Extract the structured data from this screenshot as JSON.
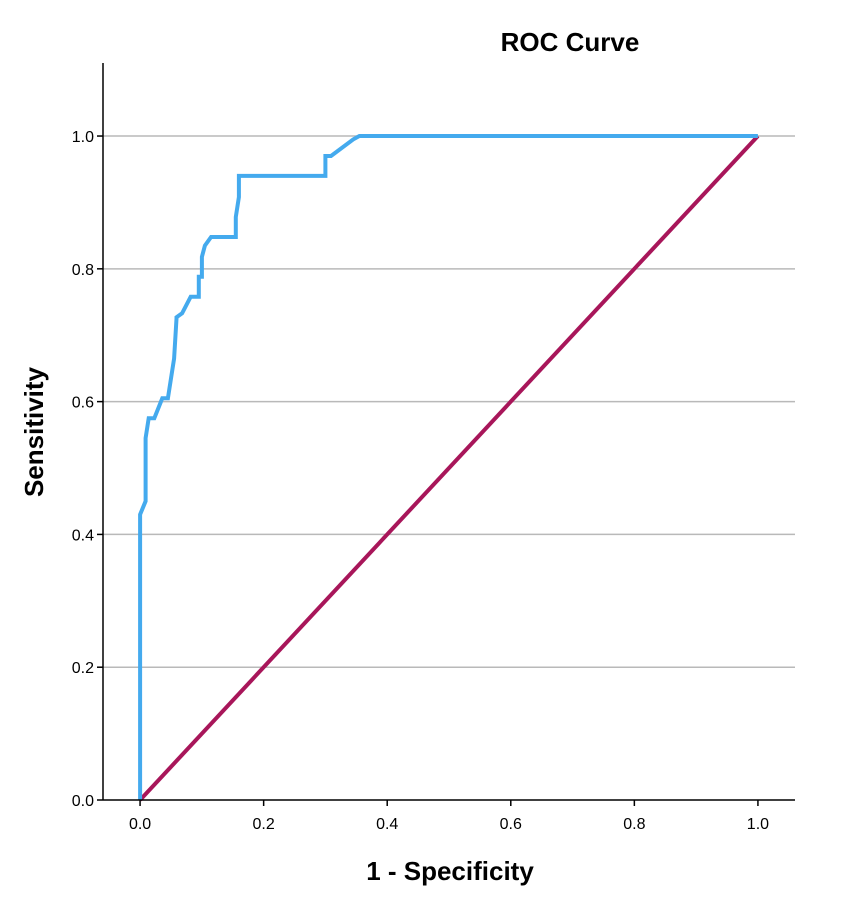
{
  "chart_data": {
    "type": "line",
    "title": "ROC Curve",
    "xlabel": "1 - Specificity",
    "ylabel": "Sensitivity",
    "xlim": [
      -0.06,
      1.06
    ],
    "ylim": [
      0.0,
      1.11
    ],
    "grid": "horizontal",
    "x_ticks": [
      0.0,
      0.2,
      0.4,
      0.6,
      0.8,
      1.0
    ],
    "x_tick_labels": [
      "0.0",
      "0.2",
      "0.4",
      "0.6",
      "0.8",
      "1.0"
    ],
    "y_ticks": [
      0.0,
      0.2,
      0.4,
      0.6,
      0.8,
      1.0
    ],
    "y_tick_labels": [
      "0.0",
      "0.2",
      "0.4",
      "0.6",
      "0.8",
      "1.0"
    ],
    "series": [
      {
        "name": "ROC",
        "color": "#44aaee",
        "x": [
          0.0,
          0.0,
          0.0,
          0.009,
          0.009,
          0.014,
          0.014,
          0.023,
          0.036,
          0.045,
          0.055,
          0.059,
          0.059,
          0.068,
          0.082,
          0.095,
          0.095,
          0.1,
          0.1,
          0.105,
          0.115,
          0.155,
          0.155,
          0.16,
          0.16,
          0.3,
          0.3,
          0.309,
          0.345,
          0.355,
          1.0
        ],
        "y": [
          0.0,
          0.42,
          0.43,
          0.45,
          0.545,
          0.575,
          0.575,
          0.575,
          0.605,
          0.605,
          0.665,
          0.725,
          0.727,
          0.733,
          0.758,
          0.758,
          0.788,
          0.788,
          0.818,
          0.835,
          0.848,
          0.848,
          0.878,
          0.908,
          0.94,
          0.94,
          0.97,
          0.97,
          0.995,
          1.0,
          1.0
        ]
      },
      {
        "name": "Reference Line",
        "color": "#a8165a",
        "x": [
          0.0,
          1.0
        ],
        "y": [
          0.0,
          1.0
        ]
      }
    ]
  }
}
